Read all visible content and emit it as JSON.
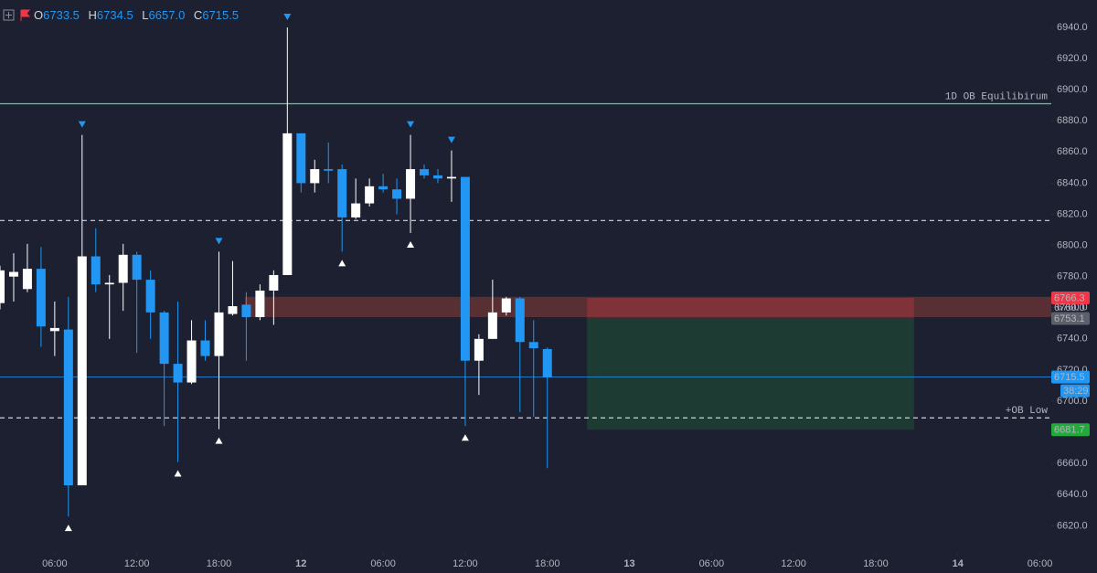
{
  "chart_data": {
    "type": "candlestick",
    "ohlc_header": {
      "labels": [
        "O",
        "H",
        "L",
        "C"
      ],
      "values": [
        6733.5,
        6734.5,
        {
          "value": 6657,
          "label": "6657.0"
        },
        6715.5
      ]
    },
    "x": [
      2,
      3,
      4,
      5,
      6,
      7,
      8,
      9,
      10,
      11,
      12,
      13,
      14,
      15,
      16,
      17,
      18,
      19,
      20,
      21,
      22,
      23,
      24,
      25,
      26,
      27,
      28,
      29,
      30,
      31,
      32,
      33,
      34,
      35,
      36,
      37,
      38,
      39,
      40,
      41,
      42
    ],
    "open": [
      6763,
      6780,
      6772,
      6785,
      6745,
      6746,
      6646,
      6793,
      6775,
      6776,
      6794,
      6778,
      6757,
      6724,
      6712,
      6739,
      6729,
      6756,
      6762,
      6754,
      6771,
      6781,
      6872,
      6840,
      6849,
      6849,
      6818,
      6827,
      6838,
      6836,
      6830,
      6849,
      6845,
      6843,
      6844,
      6726,
      6740,
      6757,
      6766,
      6738,
      6733.5
    ],
    "high": [
      6787,
      6795,
      6801,
      6799,
      6764,
      6767,
      6871,
      6811,
      6781,
      6801,
      6796,
      6784,
      6758,
      6764,
      6752,
      6752,
      6796,
      6790,
      6770,
      6775,
      6784,
      6940,
      6872,
      6855,
      6866,
      6852,
      6843,
      6843,
      6846,
      6843,
      6871,
      6852,
      6849,
      6861,
      6844,
      6743,
      6778,
      6767,
      6767,
      6752,
      6734.5
    ],
    "low": [
      6759,
      6764,
      6770,
      6735,
      6729,
      6626,
      6646,
      6770,
      6740,
      6758,
      6731,
      6740,
      6684,
      6661,
      6711,
      6726,
      6682,
      6755,
      6726,
      6752,
      6749,
      6781,
      6834,
      6834,
      6840,
      6796,
      6817,
      6825,
      6834,
      6820,
      6808,
      6843,
      6840,
      6828,
      6684,
      6704,
      6740,
      6755,
      6693,
      6690,
      6657
    ],
    "close": [
      6784,
      6783,
      6785,
      6748,
      6747,
      6646,
      6793,
      6775,
      6776,
      6794,
      6778,
      6757,
      6724,
      6712,
      6739,
      6729,
      6757,
      6761,
      6754,
      6771,
      6781,
      6872,
      6840,
      6849,
      6848,
      6818,
      6827,
      6838,
      6836,
      6830,
      6849,
      6845,
      6843,
      6844,
      6726,
      6740,
      6757,
      6766,
      6738,
      6734,
      6715.5
    ],
    "up_color": "#ffffff",
    "down_color": "#2196f3",
    "fractal_high_x": [
      8,
      18,
      23,
      32,
      35
    ],
    "fractal_low_x": [
      7,
      15,
      18,
      27,
      32,
      36
    ],
    "levels": [
      {
        "value": 6891,
        "label": "1D OB Equilibirum",
        "color": "#3ddc97",
        "style": "solid"
      },
      {
        "value": 6816,
        "color": "#d1d4dc",
        "style": "dashed"
      },
      {
        "value": 6689.3,
        "label": "+OB Low",
        "color": "#d1d4dc",
        "style": "dashed"
      }
    ],
    "ob_zone": {
      "x_start": 19.9,
      "top": 6767,
      "bottom": 6754,
      "color": "#c8503c"
    },
    "position": {
      "x_start": 44.9,
      "x_end": 68.8,
      "stop": 6766.3,
      "entry": 6753.1,
      "target": 6681.7,
      "stop_color": "#f23645",
      "target_color": "#22ab3a"
    },
    "axis_mid_tag": {
      "value": 6760,
      "label": "6760.0"
    },
    "countdown": "38:29",
    "xlim": [
      2,
      78.83
    ],
    "xticks": [
      {
        "value": 6,
        "label": "06:00"
      },
      {
        "value": 12,
        "label": "12:00"
      },
      {
        "value": 18,
        "label": "18:00"
      },
      {
        "value": 24,
        "label": "12"
      },
      {
        "value": 30,
        "label": "06:00"
      },
      {
        "value": 36,
        "label": "12:00"
      },
      {
        "value": 42,
        "label": "18:00"
      },
      {
        "value": 48,
        "label": "13"
      },
      {
        "value": 54,
        "label": "06:00"
      },
      {
        "value": 60,
        "label": "12:00"
      },
      {
        "value": 66,
        "label": "18:00"
      },
      {
        "value": 72,
        "label": "14"
      },
      {
        "value": 78,
        "label": "06:00"
      }
    ],
    "ylim": [
      6602.6,
      6957.6
    ],
    "yticks": [
      {
        "value": 6620,
        "label": "6620.0"
      },
      {
        "value": 6640,
        "label": "6640.0"
      },
      {
        "value": 6660,
        "label": "6660.0"
      },
      {
        "value": 6680,
        "label": "6680.0"
      },
      {
        "value": 6700,
        "label": "6700.0"
      },
      {
        "value": 6720,
        "label": "6720.0"
      },
      {
        "value": 6740,
        "label": "6740.0"
      },
      {
        "value": 6760,
        "label": "6760.0"
      },
      {
        "value": 6780,
        "label": "6780.0"
      },
      {
        "value": 6800,
        "label": "6800.0"
      },
      {
        "value": 6820,
        "label": "6820.0"
      },
      {
        "value": 6840,
        "label": "6840.0"
      },
      {
        "value": 6860,
        "label": "6860.0"
      },
      {
        "value": 6880,
        "label": "6880.0"
      },
      {
        "value": 6900,
        "label": "6900.0"
      },
      {
        "value": 6920,
        "label": "6920.0"
      },
      {
        "value": 6940,
        "label": "6940.0"
      }
    ],
    "grid": false
  }
}
